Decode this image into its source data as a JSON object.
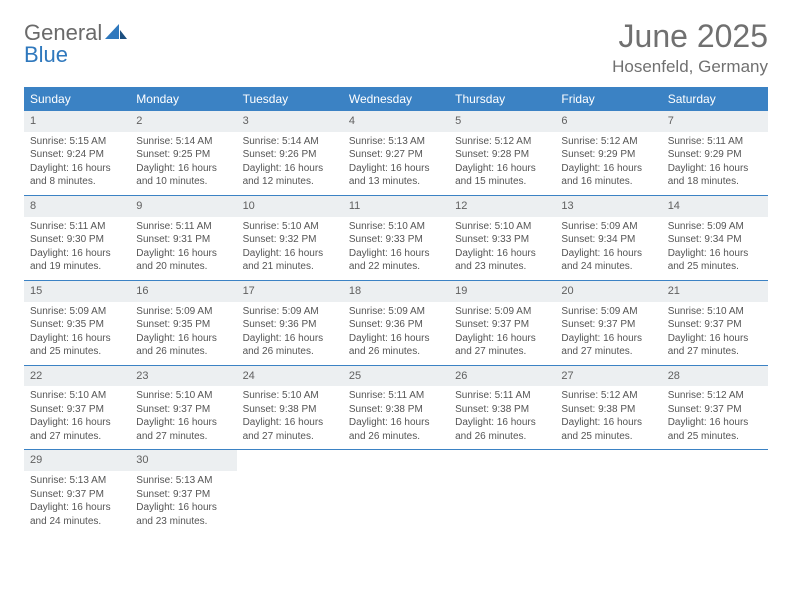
{
  "brand": {
    "word1": "General",
    "word2": "Blue"
  },
  "title": "June 2025",
  "location": "Hosenfeld, Germany",
  "colors": {
    "header_bg": "#3b82c4",
    "header_text": "#ffffff",
    "daynum_bg": "#eceff1",
    "text": "#555555",
    "brand_gray": "#6a6a6a",
    "brand_blue": "#2f78bd"
  },
  "weekdays": [
    "Sunday",
    "Monday",
    "Tuesday",
    "Wednesday",
    "Thursday",
    "Friday",
    "Saturday"
  ],
  "weeks": [
    [
      {
        "n": "1",
        "sr": "Sunrise: 5:15 AM",
        "ss": "Sunset: 9:24 PM",
        "d1": "Daylight: 16 hours",
        "d2": "and 8 minutes."
      },
      {
        "n": "2",
        "sr": "Sunrise: 5:14 AM",
        "ss": "Sunset: 9:25 PM",
        "d1": "Daylight: 16 hours",
        "d2": "and 10 minutes."
      },
      {
        "n": "3",
        "sr": "Sunrise: 5:14 AM",
        "ss": "Sunset: 9:26 PM",
        "d1": "Daylight: 16 hours",
        "d2": "and 12 minutes."
      },
      {
        "n": "4",
        "sr": "Sunrise: 5:13 AM",
        "ss": "Sunset: 9:27 PM",
        "d1": "Daylight: 16 hours",
        "d2": "and 13 minutes."
      },
      {
        "n": "5",
        "sr": "Sunrise: 5:12 AM",
        "ss": "Sunset: 9:28 PM",
        "d1": "Daylight: 16 hours",
        "d2": "and 15 minutes."
      },
      {
        "n": "6",
        "sr": "Sunrise: 5:12 AM",
        "ss": "Sunset: 9:29 PM",
        "d1": "Daylight: 16 hours",
        "d2": "and 16 minutes."
      },
      {
        "n": "7",
        "sr": "Sunrise: 5:11 AM",
        "ss": "Sunset: 9:29 PM",
        "d1": "Daylight: 16 hours",
        "d2": "and 18 minutes."
      }
    ],
    [
      {
        "n": "8",
        "sr": "Sunrise: 5:11 AM",
        "ss": "Sunset: 9:30 PM",
        "d1": "Daylight: 16 hours",
        "d2": "and 19 minutes."
      },
      {
        "n": "9",
        "sr": "Sunrise: 5:11 AM",
        "ss": "Sunset: 9:31 PM",
        "d1": "Daylight: 16 hours",
        "d2": "and 20 minutes."
      },
      {
        "n": "10",
        "sr": "Sunrise: 5:10 AM",
        "ss": "Sunset: 9:32 PM",
        "d1": "Daylight: 16 hours",
        "d2": "and 21 minutes."
      },
      {
        "n": "11",
        "sr": "Sunrise: 5:10 AM",
        "ss": "Sunset: 9:33 PM",
        "d1": "Daylight: 16 hours",
        "d2": "and 22 minutes."
      },
      {
        "n": "12",
        "sr": "Sunrise: 5:10 AM",
        "ss": "Sunset: 9:33 PM",
        "d1": "Daylight: 16 hours",
        "d2": "and 23 minutes."
      },
      {
        "n": "13",
        "sr": "Sunrise: 5:09 AM",
        "ss": "Sunset: 9:34 PM",
        "d1": "Daylight: 16 hours",
        "d2": "and 24 minutes."
      },
      {
        "n": "14",
        "sr": "Sunrise: 5:09 AM",
        "ss": "Sunset: 9:34 PM",
        "d1": "Daylight: 16 hours",
        "d2": "and 25 minutes."
      }
    ],
    [
      {
        "n": "15",
        "sr": "Sunrise: 5:09 AM",
        "ss": "Sunset: 9:35 PM",
        "d1": "Daylight: 16 hours",
        "d2": "and 25 minutes."
      },
      {
        "n": "16",
        "sr": "Sunrise: 5:09 AM",
        "ss": "Sunset: 9:35 PM",
        "d1": "Daylight: 16 hours",
        "d2": "and 26 minutes."
      },
      {
        "n": "17",
        "sr": "Sunrise: 5:09 AM",
        "ss": "Sunset: 9:36 PM",
        "d1": "Daylight: 16 hours",
        "d2": "and 26 minutes."
      },
      {
        "n": "18",
        "sr": "Sunrise: 5:09 AM",
        "ss": "Sunset: 9:36 PM",
        "d1": "Daylight: 16 hours",
        "d2": "and 26 minutes."
      },
      {
        "n": "19",
        "sr": "Sunrise: 5:09 AM",
        "ss": "Sunset: 9:37 PM",
        "d1": "Daylight: 16 hours",
        "d2": "and 27 minutes."
      },
      {
        "n": "20",
        "sr": "Sunrise: 5:09 AM",
        "ss": "Sunset: 9:37 PM",
        "d1": "Daylight: 16 hours",
        "d2": "and 27 minutes."
      },
      {
        "n": "21",
        "sr": "Sunrise: 5:10 AM",
        "ss": "Sunset: 9:37 PM",
        "d1": "Daylight: 16 hours",
        "d2": "and 27 minutes."
      }
    ],
    [
      {
        "n": "22",
        "sr": "Sunrise: 5:10 AM",
        "ss": "Sunset: 9:37 PM",
        "d1": "Daylight: 16 hours",
        "d2": "and 27 minutes."
      },
      {
        "n": "23",
        "sr": "Sunrise: 5:10 AM",
        "ss": "Sunset: 9:37 PM",
        "d1": "Daylight: 16 hours",
        "d2": "and 27 minutes."
      },
      {
        "n": "24",
        "sr": "Sunrise: 5:10 AM",
        "ss": "Sunset: 9:38 PM",
        "d1": "Daylight: 16 hours",
        "d2": "and 27 minutes."
      },
      {
        "n": "25",
        "sr": "Sunrise: 5:11 AM",
        "ss": "Sunset: 9:38 PM",
        "d1": "Daylight: 16 hours",
        "d2": "and 26 minutes."
      },
      {
        "n": "26",
        "sr": "Sunrise: 5:11 AM",
        "ss": "Sunset: 9:38 PM",
        "d1": "Daylight: 16 hours",
        "d2": "and 26 minutes."
      },
      {
        "n": "27",
        "sr": "Sunrise: 5:12 AM",
        "ss": "Sunset: 9:38 PM",
        "d1": "Daylight: 16 hours",
        "d2": "and 25 minutes."
      },
      {
        "n": "28",
        "sr": "Sunrise: 5:12 AM",
        "ss": "Sunset: 9:37 PM",
        "d1": "Daylight: 16 hours",
        "d2": "and 25 minutes."
      }
    ],
    [
      {
        "n": "29",
        "sr": "Sunrise: 5:13 AM",
        "ss": "Sunset: 9:37 PM",
        "d1": "Daylight: 16 hours",
        "d2": "and 24 minutes."
      },
      {
        "n": "30",
        "sr": "Sunrise: 5:13 AM",
        "ss": "Sunset: 9:37 PM",
        "d1": "Daylight: 16 hours",
        "d2": "and 23 minutes."
      },
      null,
      null,
      null,
      null,
      null
    ]
  ]
}
